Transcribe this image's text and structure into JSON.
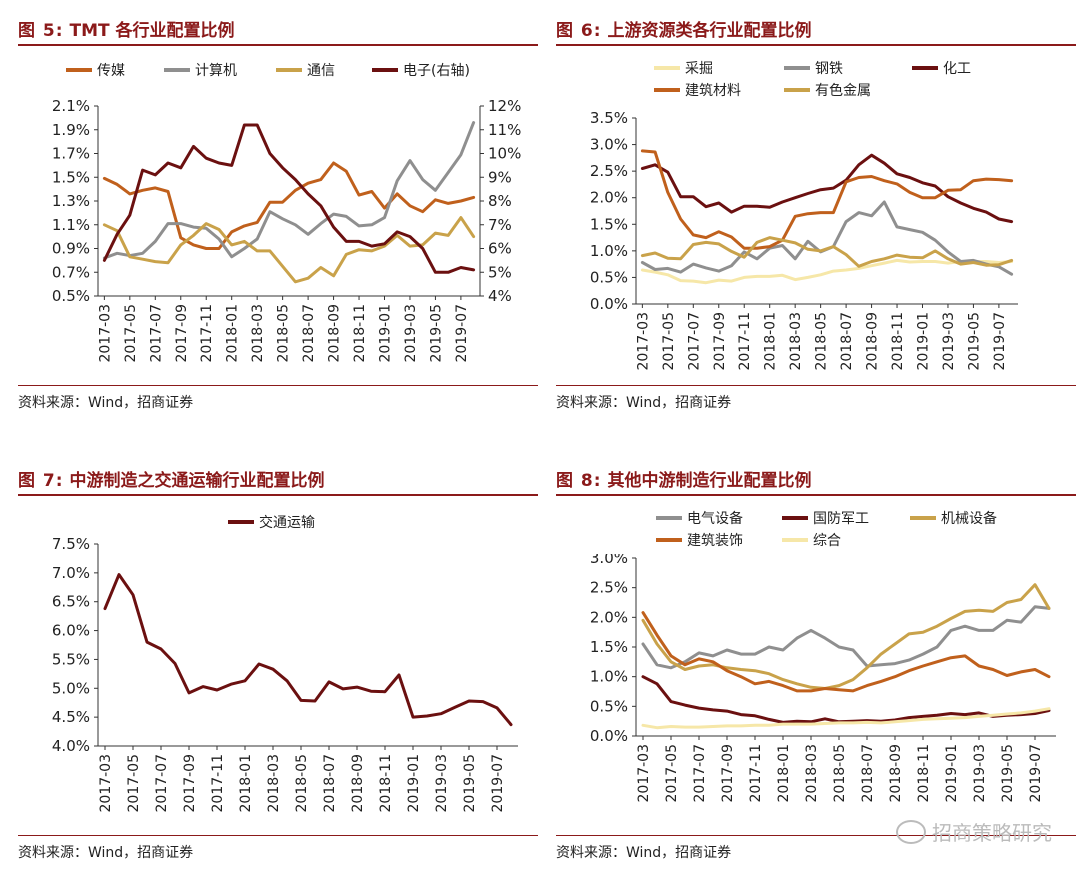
{
  "panels": [
    {
      "fig": "图 5:",
      "title": "TMT 各行业配置比例",
      "source": "资料来源：Wind，招商证券",
      "legend": [
        {
          "name": "传媒",
          "color": "#c0601c"
        },
        {
          "name": "计算机",
          "color": "#8f8f8f"
        },
        {
          "name": "通信",
          "color": "#c9a24a"
        },
        {
          "name": "电子(右轴)",
          "color": "#6b1010"
        }
      ]
    },
    {
      "fig": "图 6:",
      "title": "上游资源类各行业配置比例",
      "source": "资料来源：Wind，招商证券",
      "legend": [
        {
          "name": "采掘",
          "color": "#f6e7a8"
        },
        {
          "name": "钢铁",
          "color": "#8f8f8f"
        },
        {
          "name": "化工",
          "color": "#6b1010"
        },
        {
          "name": "建筑材料",
          "color": "#c0601c"
        },
        {
          "name": "有色金属",
          "color": "#c9a24a"
        }
      ]
    },
    {
      "fig": "图 7:",
      "title": "中游制造之交通运输行业配置比例",
      "source": "资料来源：Wind，招商证券",
      "legend": [
        {
          "name": "交通运输",
          "color": "#6b1010"
        }
      ]
    },
    {
      "fig": "图 8:",
      "title": "其他中游制造行业配置比例",
      "source": "资料来源：Wind，招商证券",
      "legend": [
        {
          "name": "电气设备",
          "color": "#8f8f8f"
        },
        {
          "name": "国防军工",
          "color": "#6b1010"
        },
        {
          "name": "机械设备",
          "color": "#c9a24a"
        },
        {
          "name": "建筑装饰",
          "color": "#c0601c"
        },
        {
          "name": "综合",
          "color": "#f6e7a8"
        }
      ]
    }
  ],
  "watermark": "招商策略研究",
  "chart_data": [
    {
      "type": "line",
      "x_tick_labels": [
        "2017-03",
        "2017-05",
        "2017-07",
        "2017-09",
        "2017-11",
        "2018-01",
        "2018-03",
        "2018-05",
        "2018-07",
        "2018-09",
        "2018-11",
        "2019-01",
        "2019-03",
        "2019-05",
        "2019-07"
      ],
      "ylim": [
        0.005,
        0.021
      ],
      "y_ticks": [
        "0.5%",
        "0.7%",
        "0.9%",
        "1.1%",
        "1.3%",
        "1.5%",
        "1.7%",
        "1.9%",
        "2.1%"
      ],
      "y2lim": [
        0.04,
        0.12
      ],
      "y2_ticks": [
        "4%",
        "5%",
        "6%",
        "7%",
        "8%",
        "9%",
        "10%",
        "11%",
        "12%"
      ],
      "series": [
        {
          "name": "传媒",
          "axis": "left",
          "color": "#c0601c",
          "values": [
            1.49,
            1.44,
            1.36,
            1.39,
            1.41,
            1.38,
            0.99,
            0.93,
            0.9,
            0.9,
            1.04,
            1.09,
            1.12,
            1.29,
            1.29,
            1.39,
            1.45,
            1.48,
            1.62,
            1.55,
            1.35,
            1.38,
            1.24,
            1.36,
            1.26,
            1.21,
            1.31,
            1.28,
            1.3,
            1.33
          ]
        },
        {
          "name": "计算机",
          "axis": "left",
          "color": "#8f8f8f",
          "values": [
            0.82,
            0.86,
            0.84,
            0.86,
            0.96,
            1.11,
            1.11,
            1.08,
            1.07,
            0.98,
            0.83,
            0.9,
            0.98,
            1.21,
            1.15,
            1.1,
            1.02,
            1.11,
            1.19,
            1.17,
            1.09,
            1.1,
            1.16,
            1.47,
            1.64,
            1.48,
            1.39,
            1.54,
            1.69,
            1.96
          ]
        },
        {
          "name": "通信",
          "axis": "left",
          "color": "#c9a24a",
          "values": [
            1.1,
            1.05,
            0.83,
            0.81,
            0.79,
            0.78,
            0.93,
            1.01,
            1.11,
            1.06,
            0.93,
            0.96,
            0.88,
            0.88,
            0.75,
            0.62,
            0.65,
            0.74,
            0.67,
            0.85,
            0.89,
            0.88,
            0.92,
            1.01,
            0.92,
            0.93,
            1.03,
            1.01,
            1.16,
            1.0
          ]
        },
        {
          "name": "电子(右轴)",
          "axis": "right",
          "color": "#6b1010",
          "values": [
            5.5,
            6.6,
            7.4,
            9.3,
            9.1,
            9.6,
            9.4,
            10.3,
            9.8,
            9.6,
            9.5,
            11.2,
            11.2,
            10.0,
            9.4,
            8.9,
            8.3,
            7.8,
            6.9,
            6.3,
            6.3,
            6.1,
            6.2,
            6.7,
            6.5,
            6.0,
            5.0,
            5.0,
            5.2,
            5.1
          ]
        }
      ]
    },
    {
      "type": "line",
      "x_tick_labels": [
        "2017-03",
        "2017-05",
        "2017-07",
        "2017-09",
        "2017-11",
        "2018-01",
        "2018-03",
        "2018-05",
        "2018-07",
        "2018-09",
        "2018-11",
        "2019-01",
        "2019-03",
        "2019-05",
        "2019-07"
      ],
      "ylim": [
        0,
        0.035
      ],
      "y_ticks": [
        "0.0%",
        "0.5%",
        "1.0%",
        "1.5%",
        "2.0%",
        "2.5%",
        "3.0%",
        "3.5%"
      ],
      "series": [
        {
          "name": "采掘",
          "color": "#f6e7a8",
          "values": [
            0.64,
            0.6,
            0.55,
            0.44,
            0.43,
            0.4,
            0.45,
            0.43,
            0.5,
            0.52,
            0.52,
            0.54,
            0.46,
            0.5,
            0.55,
            0.62,
            0.64,
            0.67,
            0.72,
            0.77,
            0.82,
            0.79,
            0.8,
            0.8,
            0.77,
            0.8,
            0.8,
            0.8,
            0.78,
            0.8
          ]
        },
        {
          "name": "钢铁",
          "color": "#8f8f8f",
          "values": [
            0.78,
            0.65,
            0.67,
            0.6,
            0.75,
            0.68,
            0.62,
            0.72,
            0.98,
            0.85,
            1.05,
            1.1,
            0.85,
            1.18,
            0.98,
            1.08,
            1.55,
            1.72,
            1.66,
            1.92,
            1.45,
            1.4,
            1.35,
            1.2,
            0.98,
            0.8,
            0.82,
            0.75,
            0.7,
            0.56
          ]
        },
        {
          "name": "化工",
          "color": "#6b1010",
          "values": [
            2.55,
            2.62,
            2.48,
            2.02,
            2.02,
            1.83,
            1.9,
            1.73,
            1.84,
            1.84,
            1.82,
            1.92,
            2.0,
            2.08,
            2.15,
            2.18,
            2.33,
            2.62,
            2.8,
            2.65,
            2.45,
            2.38,
            2.28,
            2.22,
            2.02,
            1.9,
            1.8,
            1.73,
            1.6,
            1.55
          ]
        },
        {
          "name": "建筑材料",
          "color": "#c0601c",
          "values": [
            2.88,
            2.86,
            2.1,
            1.6,
            1.3,
            1.25,
            1.36,
            1.26,
            1.05,
            1.05,
            1.08,
            1.2,
            1.65,
            1.7,
            1.72,
            1.72,
            2.3,
            2.38,
            2.4,
            2.32,
            2.26,
            2.1,
            2.0,
            2.0,
            2.14,
            2.15,
            2.32,
            2.35,
            2.34,
            2.32
          ]
        },
        {
          "name": "有色金属",
          "color": "#c9a24a",
          "values": [
            0.91,
            0.96,
            0.86,
            0.85,
            1.12,
            1.16,
            1.13,
            0.99,
            0.88,
            1.16,
            1.25,
            1.2,
            1.15,
            1.03,
            1.0,
            1.08,
            0.93,
            0.71,
            0.8,
            0.85,
            0.92,
            0.88,
            0.87,
            1.0,
            0.85,
            0.75,
            0.78,
            0.73,
            0.74,
            0.82
          ]
        }
      ]
    },
    {
      "type": "line",
      "x_tick_labels": [
        "2017-03",
        "2017-05",
        "2017-07",
        "2017-09",
        "2017-11",
        "2018-01",
        "2018-03",
        "2018-05",
        "2018-07",
        "2018-09",
        "2018-11",
        "2019-01",
        "2019-03",
        "2019-05",
        "2019-07"
      ],
      "ylim": [
        0.04,
        0.075
      ],
      "y_ticks": [
        "4.0%",
        "4.5%",
        "5.0%",
        "5.5%",
        "6.0%",
        "6.5%",
        "7.0%",
        "7.5%"
      ],
      "series": [
        {
          "name": "交通运输",
          "color": "#6b1010",
          "values": [
            6.38,
            6.97,
            6.62,
            5.8,
            5.68,
            5.43,
            4.92,
            5.03,
            4.97,
            5.07,
            5.13,
            5.42,
            5.33,
            5.13,
            4.79,
            4.78,
            5.11,
            4.99,
            5.02,
            4.95,
            4.94,
            5.23,
            4.5,
            4.52,
            4.56,
            4.67,
            4.78,
            4.77,
            4.66,
            4.37
          ]
        }
      ]
    },
    {
      "type": "line",
      "x_tick_labels": [
        "2017-03",
        "2017-05",
        "2017-07",
        "2017-09",
        "2017-11",
        "2018-01",
        "2018-03",
        "2018-05",
        "2018-07",
        "2018-09",
        "2018-11",
        "2019-01",
        "2019-03",
        "2019-05",
        "2019-07"
      ],
      "ylim": [
        0,
        0.03
      ],
      "y_ticks": [
        "0.0%",
        "0.5%",
        "1.0%",
        "1.5%",
        "2.0%",
        "2.5%",
        "3.0%"
      ],
      "series": [
        {
          "name": "电气设备",
          "color": "#8f8f8f",
          "values": [
            1.55,
            1.2,
            1.15,
            1.25,
            1.4,
            1.35,
            1.45,
            1.38,
            1.38,
            1.5,
            1.45,
            1.65,
            1.78,
            1.65,
            1.5,
            1.45,
            1.18,
            1.2,
            1.22,
            1.28,
            1.38,
            1.5,
            1.78,
            1.85,
            1.78,
            1.78,
            1.95,
            1.92,
            2.18,
            2.15
          ]
        },
        {
          "name": "国防军工",
          "color": "#6b1010",
          "values": [
            1.0,
            0.88,
            0.58,
            0.52,
            0.47,
            0.44,
            0.42,
            0.36,
            0.34,
            0.28,
            0.23,
            0.25,
            0.24,
            0.29,
            0.24,
            0.25,
            0.26,
            0.25,
            0.27,
            0.31,
            0.33,
            0.35,
            0.38,
            0.36,
            0.39,
            0.33,
            0.35,
            0.36,
            0.38,
            0.43
          ]
        },
        {
          "name": "机械设备",
          "color": "#c9a24a",
          "values": [
            1.95,
            1.55,
            1.25,
            1.12,
            1.18,
            1.2,
            1.15,
            1.12,
            1.1,
            1.05,
            0.95,
            0.88,
            0.82,
            0.8,
            0.85,
            0.95,
            1.15,
            1.38,
            1.55,
            1.72,
            1.75,
            1.85,
            1.98,
            2.1,
            2.12,
            2.1,
            2.25,
            2.3,
            2.55,
            2.15
          ]
        },
        {
          "name": "建筑装饰",
          "color": "#c0601c",
          "values": [
            2.08,
            1.7,
            1.35,
            1.2,
            1.3,
            1.25,
            1.1,
            1.0,
            0.88,
            0.92,
            0.85,
            0.76,
            0.76,
            0.8,
            0.78,
            0.76,
            0.85,
            0.92,
            1.0,
            1.1,
            1.18,
            1.25,
            1.32,
            1.35,
            1.18,
            1.12,
            1.02,
            1.08,
            1.12,
            1.0
          ]
        },
        {
          "name": "综合",
          "color": "#f6e7a8",
          "values": [
            0.18,
            0.14,
            0.16,
            0.15,
            0.15,
            0.16,
            0.17,
            0.17,
            0.18,
            0.18,
            0.2,
            0.2,
            0.2,
            0.21,
            0.22,
            0.22,
            0.23,
            0.22,
            0.24,
            0.26,
            0.28,
            0.29,
            0.3,
            0.31,
            0.33,
            0.35,
            0.37,
            0.39,
            0.42,
            0.46
          ]
        }
      ]
    }
  ]
}
